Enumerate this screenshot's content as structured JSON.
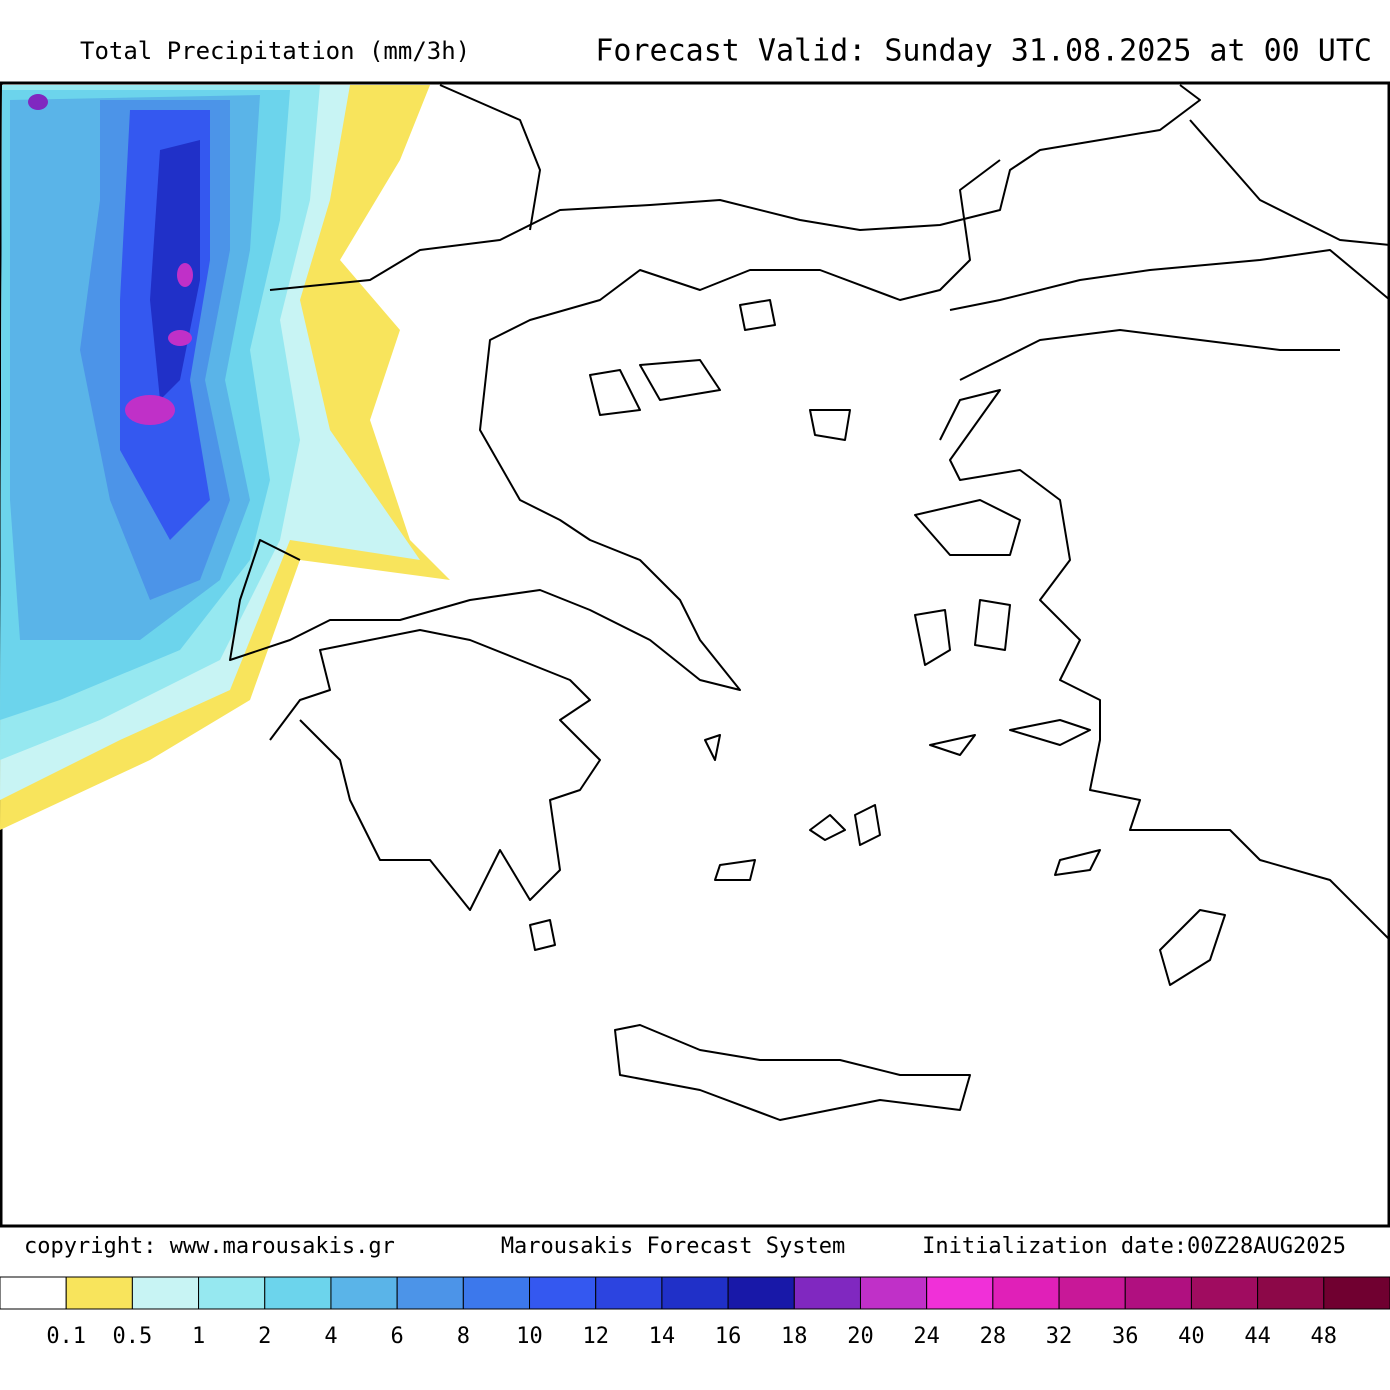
{
  "header": {
    "title": "Total Precipitation (mm/3h)",
    "valid": "Forecast Valid:  Sunday 31.08.2025 at 00 UTC"
  },
  "footer": {
    "copyright": "copyright: www.marousakis.gr",
    "system": "Marousakis Forecast System",
    "init": "Initialization date:00Z28AUG2025"
  },
  "colorbar": {
    "colors": [
      "#ffffff",
      "#f8e45c",
      "#c8f4f4",
      "#96e8f0",
      "#6cd4ec",
      "#5ab4e8",
      "#4c94e8",
      "#3c78ec",
      "#3458f0",
      "#2c44e0",
      "#2030c8",
      "#1818a8",
      "#8028c0",
      "#c030c8",
      "#f030d8",
      "#e020b8",
      "#c81898",
      "#b01080",
      "#a00c60",
      "#8c0848",
      "#700030"
    ],
    "labels": [
      0.1,
      0.5,
      1,
      2,
      4,
      6,
      8,
      10,
      12,
      14,
      16,
      18,
      20,
      24,
      28,
      32,
      36,
      40,
      44,
      48
    ]
  }
}
